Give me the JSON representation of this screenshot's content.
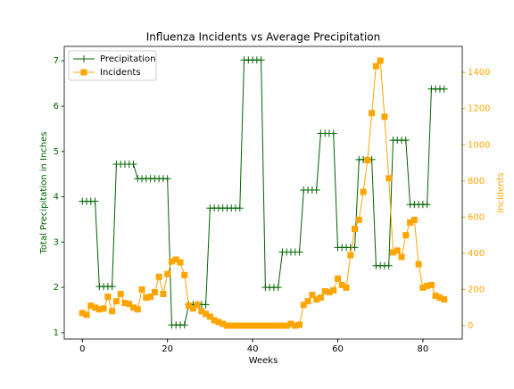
{
  "chart_data": {
    "type": "line",
    "title": "Influenza Incidents vs Average Precipitation",
    "xlabel": "Weeks",
    "ylabel": "Total Precipitation in Inches",
    "y2label": "Incidents",
    "x": [
      0,
      1,
      2,
      3,
      4,
      5,
      6,
      7,
      8,
      9,
      10,
      11,
      12,
      13,
      14,
      15,
      16,
      17,
      18,
      19,
      20,
      21,
      22,
      23,
      24,
      25,
      26,
      27,
      28,
      29,
      30,
      31,
      32,
      33,
      34,
      35,
      36,
      37,
      38,
      39,
      40,
      41,
      42,
      43,
      44,
      45,
      46,
      47,
      48,
      49,
      50,
      51,
      52,
      53,
      54,
      55,
      56,
      57,
      58,
      59,
      60,
      61,
      62,
      63,
      64,
      65,
      66,
      67,
      68,
      69,
      70,
      71,
      72,
      73,
      74,
      75,
      76,
      77,
      78,
      79,
      80,
      81,
      82,
      83,
      84,
      85
    ],
    "series": [
      {
        "name": "Precipitation",
        "color": "#006400",
        "marker": "plus",
        "axis": "y",
        "values": [
          3.9,
          3.9,
          3.9,
          3.9,
          2.02,
          2.02,
          2.02,
          2.02,
          4.72,
          4.72,
          4.72,
          4.72,
          4.72,
          4.4,
          4.4,
          4.4,
          4.4,
          4.4,
          4.4,
          4.4,
          4.4,
          1.17,
          1.17,
          1.17,
          1.17,
          1.62,
          1.62,
          1.62,
          1.62,
          1.62,
          3.75,
          3.75,
          3.75,
          3.75,
          3.75,
          3.75,
          3.75,
          3.75,
          7.02,
          7.02,
          7.02,
          7.02,
          7.02,
          2.0,
          2.0,
          2.0,
          2.0,
          2.78,
          2.78,
          2.78,
          2.78,
          2.78,
          4.15,
          4.15,
          4.15,
          4.15,
          5.4,
          5.4,
          5.4,
          5.4,
          2.88,
          2.88,
          2.88,
          2.88,
          2.88,
          4.82,
          4.82,
          4.82,
          4.82,
          2.48,
          2.48,
          2.48,
          2.48,
          5.25,
          5.25,
          5.25,
          5.25,
          3.83,
          3.83,
          3.83,
          3.83,
          3.83,
          6.38,
          6.38,
          6.38,
          6.38
        ]
      },
      {
        "name": "Incidents",
        "color": "#ffa500",
        "marker": "square",
        "axis": "y2",
        "values": [
          70,
          60,
          110,
          100,
          90,
          95,
          160,
          80,
          135,
          175,
          125,
          120,
          100,
          90,
          200,
          155,
          160,
          185,
          270,
          175,
          285,
          355,
          365,
          350,
          280,
          110,
          95,
          115,
          80,
          65,
          50,
          30,
          20,
          10,
          0,
          0,
          0,
          0,
          0,
          0,
          0,
          0,
          0,
          0,
          0,
          0,
          0,
          0,
          0,
          10,
          0,
          5,
          115,
          135,
          170,
          145,
          155,
          190,
          185,
          195,
          260,
          225,
          210,
          390,
          535,
          585,
          740,
          915,
          1175,
          1435,
          1465,
          1155,
          815,
          405,
          415,
          380,
          500,
          570,
          585,
          340,
          210,
          220,
          225,
          165,
          155,
          145
        ]
      }
    ],
    "xlim": [
      -4.25,
      89.25
    ],
    "xticks": [
      0,
      20,
      40,
      60,
      80
    ],
    "ylim": [
      0.86,
      7.32
    ],
    "yticks": [
      1,
      2,
      3,
      4,
      5,
      6,
      7
    ],
    "y2lim": [
      -74,
      1544
    ],
    "y2ticks": [
      0,
      200,
      400,
      600,
      800,
      1000,
      1200,
      1400
    ],
    "legend": "upper left"
  }
}
